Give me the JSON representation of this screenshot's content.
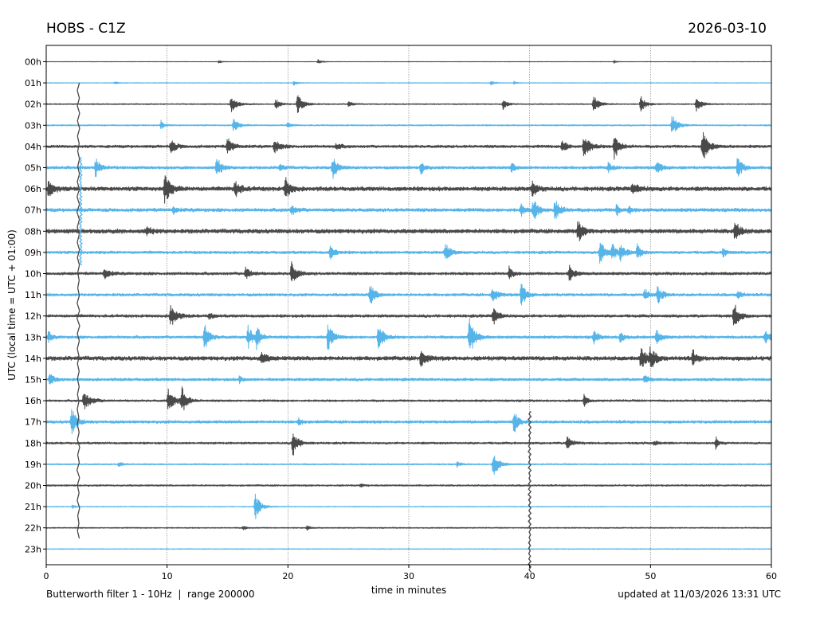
{
  "chart_data": {
    "type": "line",
    "title_left": "HOBS - C1Z",
    "title_right": "2026-03-10",
    "xlabel": "time in minutes",
    "ylabel": "UTC (local time = UTC + 01:00)",
    "xlim": [
      0,
      60
    ],
    "x_ticks": [
      "0",
      "10",
      "20",
      "30",
      "40",
      "50",
      "60"
    ],
    "grid_x": true,
    "hours": [
      "00h",
      "01h",
      "02h",
      "03h",
      "04h",
      "05h",
      "06h",
      "07h",
      "08h",
      "09h",
      "10h",
      "11h",
      "12h",
      "13h",
      "14h",
      "15h",
      "16h",
      "17h",
      "18h",
      "19h",
      "20h",
      "21h",
      "22h",
      "23h"
    ],
    "colors": {
      "even": "#4a4a4a",
      "odd": "#56b4e9"
    },
    "noise": [
      0.3,
      0.5,
      0.8,
      1.0,
      2.0,
      2.0,
      3.0,
      2.5,
      3.0,
      2.0,
      2.0,
      2.0,
      2.0,
      2.0,
      3.0,
      2.0,
      1.5,
      2.0,
      1.5,
      1.0,
      1.2,
      0.6,
      0.8,
      0.6
    ],
    "events": [
      [
        [
          22.5,
          3,
          0.8
        ],
        [
          14.3,
          2,
          0.6
        ],
        [
          47,
          2,
          0.6
        ]
      ],
      [
        [
          5.7,
          2,
          0.5
        ],
        [
          20.5,
          3,
          0.6
        ],
        [
          36.8,
          3,
          0.6
        ],
        [
          38.7,
          2,
          0.5
        ]
      ],
      [
        [
          15.3,
          10,
          1.2
        ],
        [
          19,
          6,
          1.0
        ],
        [
          20.8,
          12,
          1.2
        ],
        [
          25,
          4,
          0.8
        ],
        [
          37.8,
          7,
          0.8
        ],
        [
          45.3,
          10,
          1.2
        ],
        [
          49.2,
          10,
          1.0
        ],
        [
          53.8,
          10,
          1.0
        ]
      ],
      [
        [
          9.5,
          6,
          0.6
        ],
        [
          15.5,
          8,
          1.0
        ],
        [
          51.8,
          14,
          1.0
        ],
        [
          20,
          3,
          0.8
        ]
      ],
      [
        [
          10.3,
          8,
          1.2
        ],
        [
          15,
          10,
          1.2
        ],
        [
          18.9,
          8,
          1.2
        ],
        [
          24,
          4,
          1.0
        ],
        [
          42.7,
          8,
          1.0
        ],
        [
          44.5,
          16,
          1.2
        ],
        [
          47,
          18,
          1.0
        ],
        [
          54.3,
          20,
          1.2
        ]
      ],
      [
        [
          4.1,
          12,
          1.0
        ],
        [
          14.1,
          14,
          1.0
        ],
        [
          19.3,
          5,
          0.8
        ],
        [
          23.7,
          14,
          1.0
        ],
        [
          31,
          8,
          0.8
        ],
        [
          38.5,
          6,
          0.8
        ],
        [
          46.5,
          6,
          0.8
        ],
        [
          50.5,
          8,
          1.2
        ],
        [
          57.2,
          14,
          1.0
        ]
      ],
      [
        [
          0.2,
          12,
          1.0
        ],
        [
          9.8,
          18,
          1.2
        ],
        [
          15.6,
          10,
          1.2
        ],
        [
          19.8,
          14,
          1.0
        ],
        [
          40.2,
          10,
          1.0
        ],
        [
          48.5,
          6,
          1.5
        ]
      ],
      [
        [
          10.5,
          6,
          0.6
        ],
        [
          20.3,
          6,
          1.0
        ],
        [
          39.3,
          8,
          0.8
        ],
        [
          40.3,
          14,
          1.0
        ],
        [
          42.1,
          14,
          1.0
        ],
        [
          47.2,
          8,
          0.6
        ],
        [
          48.2,
          6,
          0.6
        ]
      ],
      [
        [
          8.3,
          5,
          1.2
        ],
        [
          44,
          14,
          1.0
        ],
        [
          57,
          14,
          1.0
        ]
      ],
      [
        [
          23.5,
          8,
          1.0
        ],
        [
          33,
          12,
          1.0
        ],
        [
          45.8,
          16,
          1.0
        ],
        [
          46.8,
          12,
          1.0
        ],
        [
          47.5,
          10,
          1.0
        ],
        [
          48.9,
          10,
          0.8
        ],
        [
          56,
          6,
          0.8
        ]
      ],
      [
        [
          4.8,
          8,
          1.0
        ],
        [
          16.5,
          8,
          1.0
        ],
        [
          20.3,
          16,
          1.0
        ],
        [
          38.3,
          8,
          0.8
        ],
        [
          43.3,
          10,
          1.0
        ]
      ],
      [
        [
          26.8,
          14,
          1.0
        ],
        [
          36.9,
          10,
          1.0
        ],
        [
          39.3,
          16,
          1.0
        ],
        [
          49.5,
          8,
          0.8
        ],
        [
          50.6,
          12,
          1.0
        ],
        [
          57.2,
          6,
          0.8
        ]
      ],
      [
        [
          10.3,
          14,
          1.2
        ],
        [
          13.5,
          6,
          0.6
        ],
        [
          37,
          12,
          1.0
        ],
        [
          56.9,
          18,
          1.0
        ]
      ],
      [
        [
          0.2,
          8,
          0.6
        ],
        [
          13.1,
          18,
          1.0
        ],
        [
          16.7,
          14,
          1.0
        ],
        [
          17.4,
          14,
          0.8
        ],
        [
          23.3,
          18,
          1.0
        ],
        [
          27.5,
          20,
          1.0
        ],
        [
          35,
          24,
          1.2
        ],
        [
          45.3,
          10,
          0.8
        ],
        [
          47.5,
          8,
          0.8
        ],
        [
          50.5,
          8,
          1.0
        ],
        [
          59.5,
          10,
          0.8
        ]
      ],
      [
        [
          17.8,
          8,
          1.0
        ],
        [
          31,
          12,
          1.0
        ],
        [
          49.2,
          16,
          1.0
        ],
        [
          50,
          14,
          1.0
        ],
        [
          53.5,
          10,
          0.8
        ]
      ],
      [
        [
          0.3,
          8,
          0.8
        ],
        [
          16,
          4,
          0.6
        ],
        [
          49.5,
          6,
          0.8
        ]
      ],
      [
        [
          3.1,
          12,
          1.5
        ],
        [
          10.1,
          14,
          1.2
        ],
        [
          11.2,
          18,
          1.0
        ],
        [
          44.5,
          8,
          0.6
        ]
      ],
      [
        [
          2.1,
          18,
          1.0
        ],
        [
          38.7,
          16,
          0.8
        ],
        [
          20.9,
          4,
          0.8
        ]
      ],
      [
        [
          20.4,
          18,
          1.0
        ],
        [
          43.1,
          10,
          1.0
        ],
        [
          55.4,
          8,
          0.6
        ],
        [
          50.3,
          3,
          0.8
        ]
      ],
      [
        [
          6,
          3,
          0.8
        ],
        [
          37,
          18,
          1.0
        ],
        [
          34,
          4,
          0.6
        ]
      ],
      [
        [
          26,
          2,
          0.6
        ]
      ],
      [
        [
          2.2,
          3,
          0.4
        ],
        [
          17.3,
          18,
          1.0
        ]
      ],
      [
        [
          16.3,
          3,
          0.6
        ],
        [
          21.6,
          3,
          0.6
        ]
      ]
    ],
    "tall_spikes": [
      {
        "x": 2.65,
        "top_hour": 1,
        "bottom_hour": 22.5,
        "color": "even"
      },
      {
        "x": 2.85,
        "top_hour": 4.5,
        "bottom_hour": 9.6,
        "color": "odd"
      },
      {
        "x": 40.0,
        "top_hour": 16.5,
        "bottom_hour": 24.1,
        "color": "even"
      }
    ],
    "footer_left": "Butterworth filter 1 - 10Hz  |  range 200000",
    "footer_right": "updated at 11/03/2026 13:31 UTC"
  }
}
